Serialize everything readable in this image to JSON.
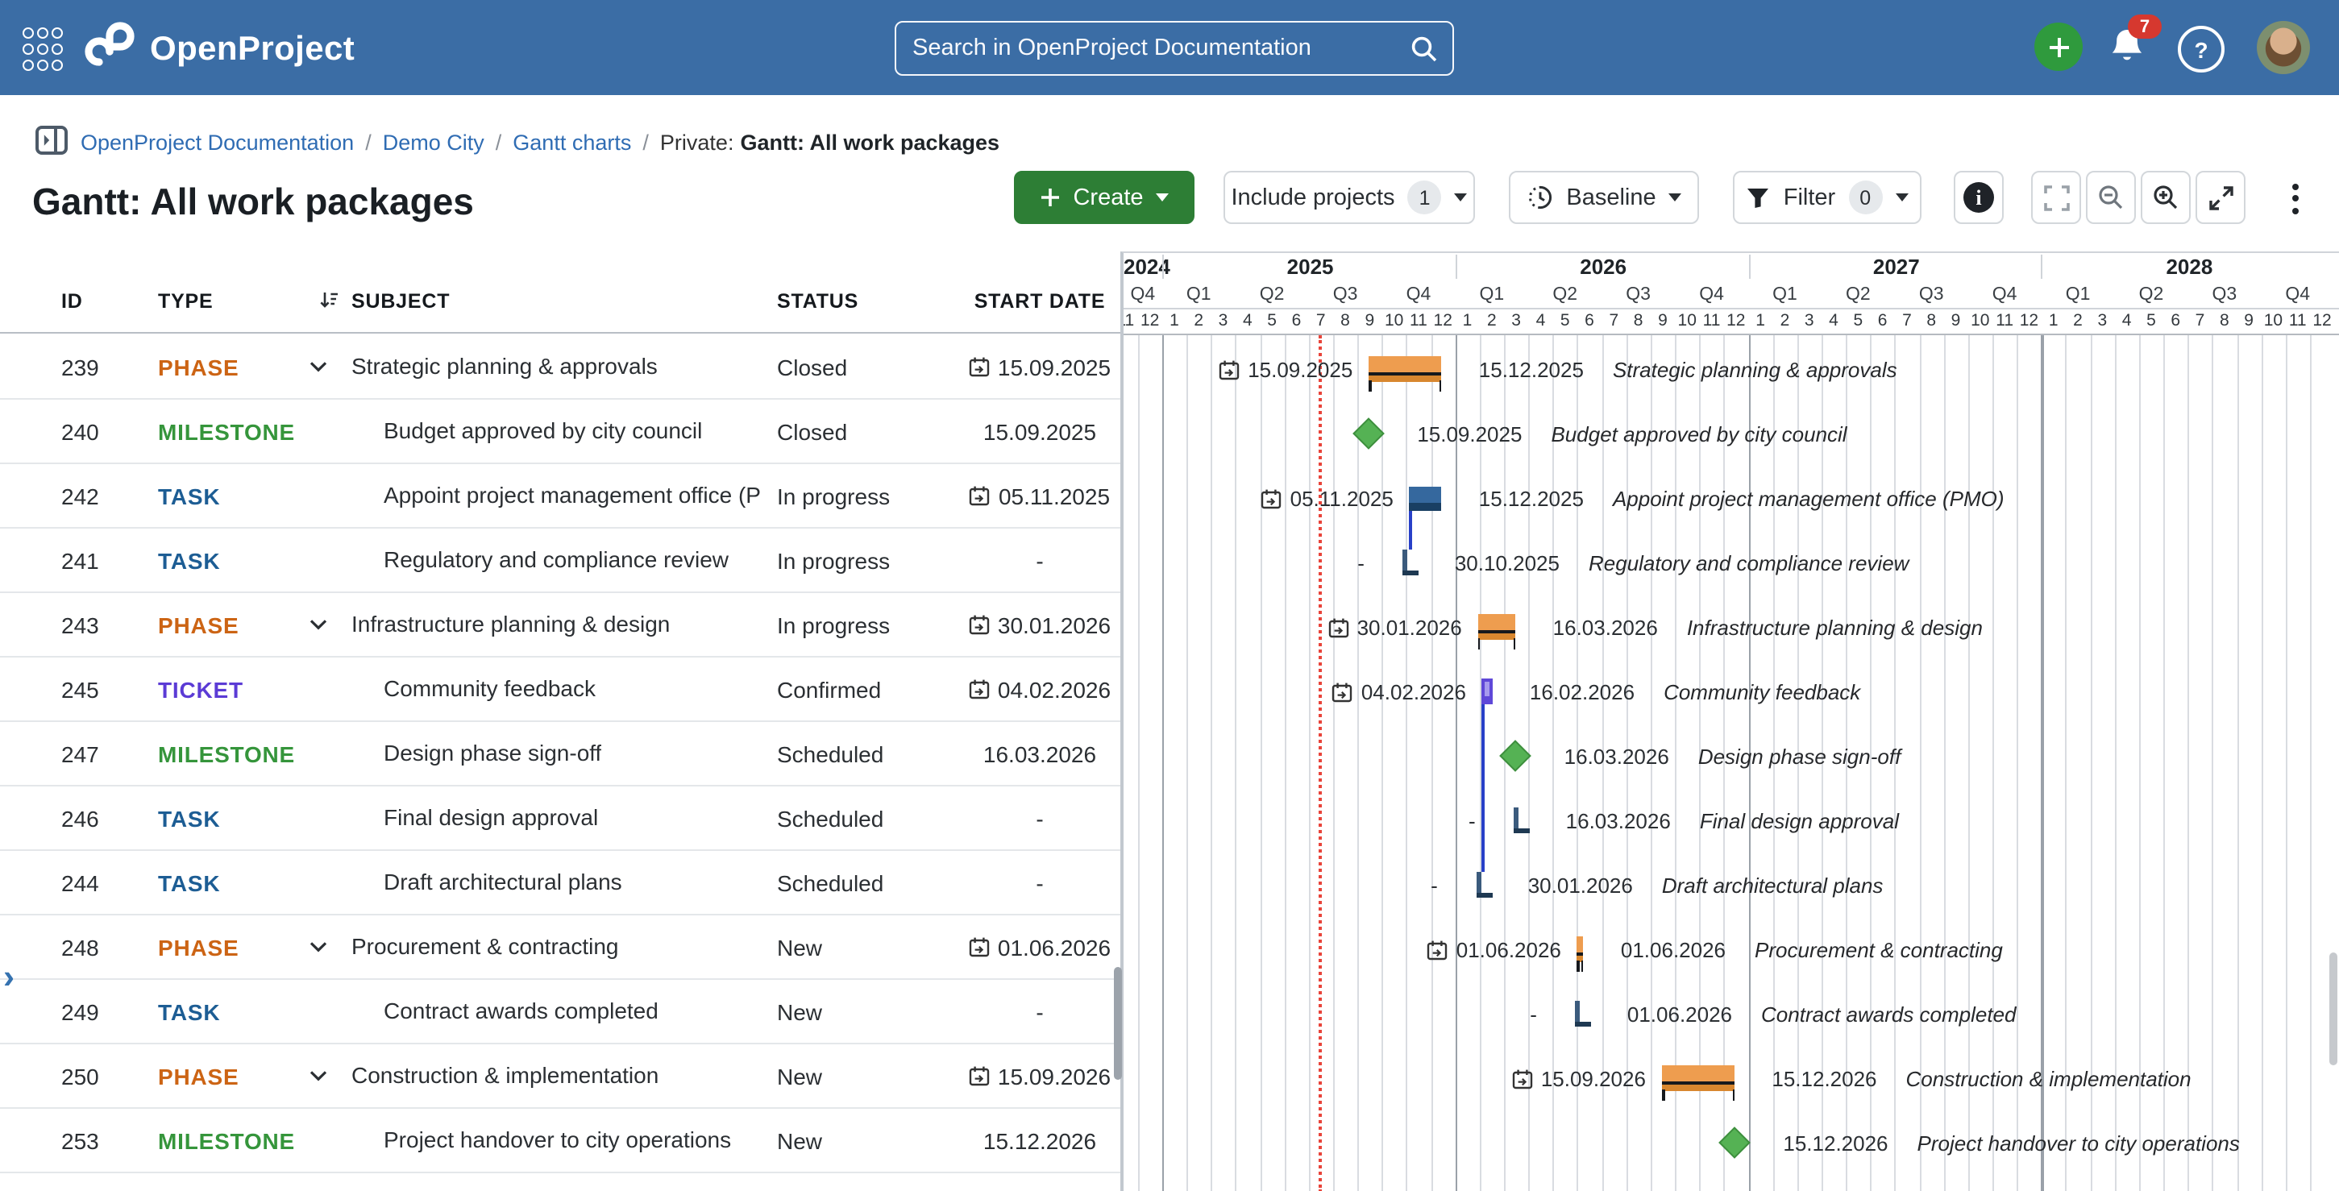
{
  "header": {
    "app_name": "OpenProject",
    "search_placeholder": "Search in OpenProject Documentation",
    "notifications_count": "7",
    "help_label": "?"
  },
  "breadcrumb": {
    "links": [
      "OpenProject Documentation",
      "Demo City",
      "Gantt charts"
    ],
    "separator": "/",
    "prefix": "Private:",
    "current": "Gantt: All work packages"
  },
  "page": {
    "title": "Gantt: All work packages"
  },
  "toolbar": {
    "create_label": "Create",
    "include_projects_label": "Include projects",
    "include_projects_count": "1",
    "baseline_label": "Baseline",
    "filter_label": "Filter",
    "filter_count": "0"
  },
  "table": {
    "columns": [
      "ID",
      "TYPE",
      "SUBJECT",
      "STATUS",
      "START DATE"
    ]
  },
  "colors": {
    "header_blue": "#3B6DA5",
    "link_blue": "#2F6CB3",
    "create_green": "#2D7E35",
    "type_phase": "#CC6414",
    "type_task": "#1D5D94",
    "type_milestone": "#35953B",
    "type_ticket": "#5B3BD5",
    "bar_phase": "#EE9D4F",
    "bar_task": "#35689E",
    "bar_ticket": "#A79AEE",
    "milestone_green": "#55B254",
    "dependency_blue": "#2840C8",
    "today_red": "#E8443A"
  },
  "chart_data": {
    "type": "gantt",
    "timeline": {
      "first_month": "2024-11",
      "last_month": "2028-12",
      "today": "2025-07-13"
    },
    "rows": [
      {
        "id": "239",
        "type": "PHASE",
        "is_parent": true,
        "subject": "Strategic planning & approvals",
        "status": "Closed",
        "start_date": "15.09.2025",
        "start_date_icon": true,
        "bar": {
          "kind": "phase",
          "start": "2025-09-15",
          "finish": "2025-12-15",
          "label_left": "15.09.2025",
          "label_left_icon": true,
          "label_right": "15.12.2025",
          "label_name": "Strategic planning & approvals"
        }
      },
      {
        "id": "240",
        "type": "MILESTONE",
        "is_parent": false,
        "subject": "Budget approved by city council",
        "status": "Closed",
        "start_date": "15.09.2025",
        "start_date_icon": false,
        "bar": {
          "kind": "milestone",
          "start": "2025-09-15",
          "finish": "2025-09-15",
          "label_left": "",
          "label_left_icon": false,
          "label_right": "15.09.2025",
          "label_name": "Budget approved by city council"
        }
      },
      {
        "id": "242",
        "type": "TASK",
        "is_parent": false,
        "subject": "Appoint project management office (PMO)",
        "status": "In progress",
        "start_date": "05.11.2025",
        "start_date_icon": true,
        "bar": {
          "kind": "task",
          "start": "2025-11-05",
          "finish": "2025-12-15",
          "label_left": "05.11.2025",
          "label_left_icon": true,
          "label_right": "15.12.2025",
          "label_name": "Appoint project management office (PMO)"
        }
      },
      {
        "id": "241",
        "type": "TASK",
        "is_parent": false,
        "subject": "Regulatory and compliance review",
        "status": "In progress",
        "start_date": "-",
        "start_date_icon": false,
        "bar": {
          "kind": "end_clamp",
          "start": "",
          "finish": "2025-10-30",
          "label_left": "-",
          "label_left_icon": false,
          "label_right": "30.10.2025",
          "label_name": "Regulatory and compliance review"
        }
      },
      {
        "id": "243",
        "type": "PHASE",
        "is_parent": true,
        "subject": "Infrastructure planning & design",
        "status": "In progress",
        "start_date": "30.01.2026",
        "start_date_icon": true,
        "bar": {
          "kind": "phase",
          "start": "2026-01-30",
          "finish": "2026-03-16",
          "label_left": "30.01.2026",
          "label_left_icon": true,
          "label_right": "16.03.2026",
          "label_name": "Infrastructure planning & design"
        }
      },
      {
        "id": "245",
        "type": "TICKET",
        "is_parent": false,
        "subject": "Community feedback",
        "status": "Confirmed",
        "start_date": "04.02.2026",
        "start_date_icon": true,
        "bar": {
          "kind": "ticket",
          "start": "2026-02-04",
          "finish": "2026-02-16",
          "label_left": "04.02.2026",
          "label_left_icon": true,
          "label_right": "16.02.2026",
          "label_name": "Community feedback"
        }
      },
      {
        "id": "247",
        "type": "MILESTONE",
        "is_parent": false,
        "subject": "Design phase sign-off",
        "status": "Scheduled",
        "start_date": "16.03.2026",
        "start_date_icon": false,
        "bar": {
          "kind": "milestone",
          "start": "2026-03-16",
          "finish": "2026-03-16",
          "label_left": "",
          "label_left_icon": false,
          "label_right": "16.03.2026",
          "label_name": "Design phase sign-off"
        }
      },
      {
        "id": "246",
        "type": "TASK",
        "is_parent": false,
        "subject": "Final design approval",
        "status": "Scheduled",
        "start_date": "-",
        "start_date_icon": false,
        "bar": {
          "kind": "end_clamp",
          "start": "",
          "finish": "2026-03-16",
          "label_left": "-",
          "label_left_icon": false,
          "label_right": "16.03.2026",
          "label_name": "Final design approval"
        }
      },
      {
        "id": "244",
        "type": "TASK",
        "is_parent": false,
        "subject": "Draft architectural plans",
        "status": "Scheduled",
        "start_date": "-",
        "start_date_icon": false,
        "bar": {
          "kind": "end_clamp",
          "start": "",
          "finish": "2026-01-30",
          "label_left": "-",
          "label_left_icon": false,
          "label_right": "30.01.2026",
          "label_name": "Draft architectural plans"
        }
      },
      {
        "id": "248",
        "type": "PHASE",
        "is_parent": true,
        "subject": "Procurement & contracting",
        "status": "New",
        "start_date": "01.06.2026",
        "start_date_icon": true,
        "bar": {
          "kind": "phase",
          "start": "2026-06-01",
          "finish": "2026-06-01",
          "label_left": "01.06.2026",
          "label_left_icon": true,
          "label_right": "01.06.2026",
          "label_name": "Procurement & contracting"
        }
      },
      {
        "id": "249",
        "type": "TASK",
        "is_parent": false,
        "subject": "Contract awards completed",
        "status": "New",
        "start_date": "-",
        "start_date_icon": false,
        "bar": {
          "kind": "end_clamp",
          "start": "",
          "finish": "2026-06-01",
          "label_left": "-",
          "label_left_icon": false,
          "label_right": "01.06.2026",
          "label_name": "Contract awards completed"
        }
      },
      {
        "id": "250",
        "type": "PHASE",
        "is_parent": true,
        "subject": "Construction & implementation",
        "status": "New",
        "start_date": "15.09.2026",
        "start_date_icon": true,
        "bar": {
          "kind": "phase",
          "start": "2026-09-15",
          "finish": "2026-12-15",
          "label_left": "15.09.2026",
          "label_left_icon": true,
          "label_right": "15.12.2026",
          "label_name": "Construction & implementation"
        }
      },
      {
        "id": "253",
        "type": "MILESTONE",
        "is_parent": false,
        "subject": "Project handover to city operations",
        "status": "New",
        "start_date": "15.12.2026",
        "start_date_icon": false,
        "bar": {
          "kind": "milestone",
          "start": "2026-12-15",
          "finish": "2026-12-15",
          "label_left": "",
          "label_left_icon": false,
          "label_right": "15.12.2026",
          "label_name": "Project handover to city operations"
        }
      }
    ],
    "dependencies": [
      {
        "from_id": "242",
        "to_id": "241"
      },
      {
        "from_id": "245",
        "to_id": "244"
      }
    ]
  }
}
